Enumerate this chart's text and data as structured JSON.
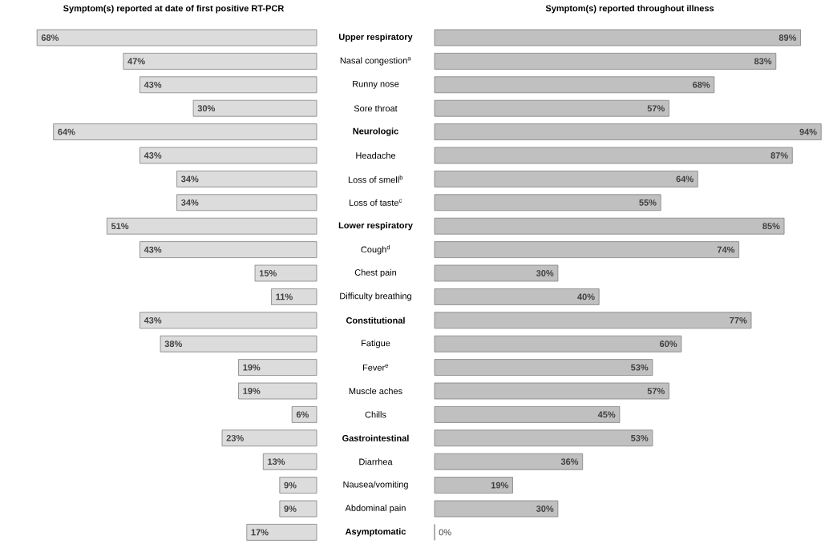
{
  "chart_data": [
    {
      "type": "bar",
      "orientation": "horizontal",
      "title": "Symptom(s) reported at date of first positive RT-PCR",
      "categories": [
        "**Upper respiratory**",
        "Nasal congestion$^{a}$",
        "Runny nose",
        "Sore throat",
        "**Neurologic**",
        "Headache",
        "Loss of smell$^{b}$",
        "Loss of taste$^{c}$",
        "**Lower respiratory**",
        "Cough$^{d}$",
        "Chest pain",
        "Difficulty breathing",
        "**Constitutional**",
        "Fatigue",
        "Fever$^{e}$",
        "Muscle aches",
        "Chills",
        "**Gastrointestinal**",
        "Diarrhea",
        "Nausea/vomiting",
        "Abdominal pain",
        "**Asymptomatic**"
      ],
      "values": [
        68,
        47,
        43,
        30,
        64,
        43,
        34,
        34,
        51,
        43,
        15,
        11,
        43,
        38,
        19,
        19,
        6,
        23,
        13,
        9,
        9,
        17
      ],
      "value_labels": [
        "68%",
        "47%",
        "43%",
        "30%",
        "64%",
        "43%",
        "34%",
        "34%",
        "51%",
        "43%",
        "15%",
        "11%",
        "43%",
        "38%",
        "19%",
        "19%",
        "6%",
        "23%",
        "13%",
        "9%",
        "9%",
        "17%"
      ],
      "color": "#dcdcdc",
      "tick_labels": "y"
    },
    {
      "type": "bar",
      "orientation": "horizontal",
      "title": "Symptom(s) reported throughout illness",
      "categories": [
        null,
        null,
        null,
        null,
        null,
        null,
        null,
        null,
        null,
        null,
        null,
        null,
        null,
        null,
        null,
        null,
        null,
        null,
        null,
        null,
        null,
        null
      ],
      "values": [
        89,
        83,
        68,
        57,
        94,
        87,
        64,
        55,
        85,
        74,
        30,
        40,
        77,
        60,
        53,
        57,
        45,
        53,
        36,
        19,
        30,
        0
      ],
      "value_labels": [
        "89%",
        "83%",
        "68%",
        "57%",
        "94%",
        "87%",
        "64%",
        "55%",
        "85%",
        "74%",
        "30%",
        "40%",
        "77%",
        "60%",
        "53%",
        "57%",
        "45%",
        "53%",
        "36%",
        "19%",
        "30%",
        "0%"
      ],
      "color": "#c0c0c0"
    }
  ]
}
